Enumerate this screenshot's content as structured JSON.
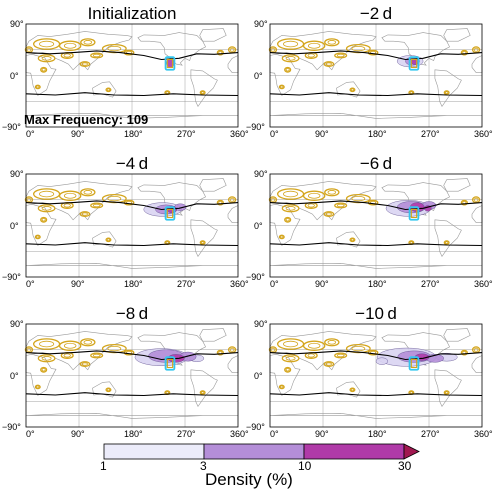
{
  "panels": [
    {
      "title": "Initialization",
      "stage": 0
    },
    {
      "title": "−2 d",
      "stage": 1
    },
    {
      "title": "−4 d",
      "stage": 2
    },
    {
      "title": "−6 d",
      "stage": 3
    },
    {
      "title": "−8 d",
      "stage": 4
    },
    {
      "title": "−10 d",
      "stage": 5
    }
  ],
  "annotation": {
    "text": "Max Frequency: 109"
  },
  "axes": {
    "lon_ticks": [
      "0°",
      "90°",
      "180°",
      "270°",
      "360°"
    ],
    "lat_ticks": [
      "90°",
      "0°",
      "−90°"
    ]
  },
  "colorbar": {
    "title": "Density (%)",
    "tick_labels": [
      "1",
      "3",
      "10",
      "30"
    ],
    "colors": [
      "#ececfa",
      "#b48ed8",
      "#b03aa8",
      "#a01850"
    ]
  },
  "map_colors": {
    "coastline": "#9a9a9a",
    "jet_contour": "#d4a51c",
    "density_light": "#d9d4f2",
    "density_mid": "#b48ed8",
    "density_high": "#b03aa8",
    "start_region": "#33c6ee",
    "line": "#000000"
  }
}
